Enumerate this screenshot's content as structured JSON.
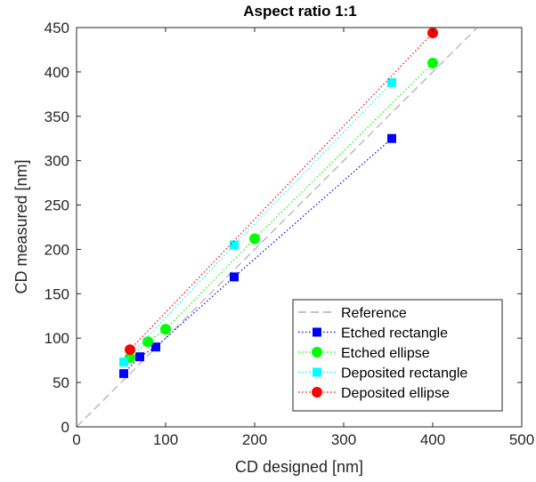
{
  "chart_data": {
    "type": "scatter",
    "title": "Aspect ratio 1:1",
    "xlabel": "CD designed [nm]",
    "ylabel": "CD measured [nm]",
    "xlim": [
      0,
      500
    ],
    "ylim": [
      0,
      450
    ],
    "xticks": [
      0,
      100,
      200,
      300,
      400,
      500
    ],
    "yticks": [
      0,
      50,
      100,
      150,
      200,
      250,
      300,
      350,
      400,
      450
    ],
    "grid": false,
    "legend_position": "bottom-right",
    "series": [
      {
        "name": "Reference",
        "kind": "line",
        "line_style": "dashed",
        "color": "#9e9e9e",
        "x": [
          0,
          450
        ],
        "y": [
          0,
          450
        ]
      },
      {
        "name": "Etched rectangle",
        "kind": "line-marker",
        "marker": "square",
        "line_style": "dotted",
        "color": "#0000ff",
        "x": [
          53,
          71,
          89,
          177,
          354
        ],
        "y": [
          60,
          79,
          90,
          169,
          325
        ]
      },
      {
        "name": "Etched ellipse",
        "kind": "line-marker",
        "marker": "circle",
        "line_style": "dotted",
        "color": "#00ff00",
        "x": [
          60,
          80,
          100,
          200,
          400
        ],
        "y": [
          78,
          96,
          110,
          212,
          410
        ]
      },
      {
        "name": "Deposited rectangle",
        "kind": "line-marker",
        "marker": "square",
        "line_style": "dotted",
        "color": "#00ffff",
        "x": [
          53,
          177,
          354
        ],
        "y": [
          73,
          205,
          388
        ]
      },
      {
        "name": "Deposited ellipse",
        "kind": "line-marker",
        "marker": "circle",
        "line_style": "dotted",
        "color": "#ff0000",
        "x": [
          60,
          400
        ],
        "y": [
          87,
          444
        ]
      }
    ]
  }
}
